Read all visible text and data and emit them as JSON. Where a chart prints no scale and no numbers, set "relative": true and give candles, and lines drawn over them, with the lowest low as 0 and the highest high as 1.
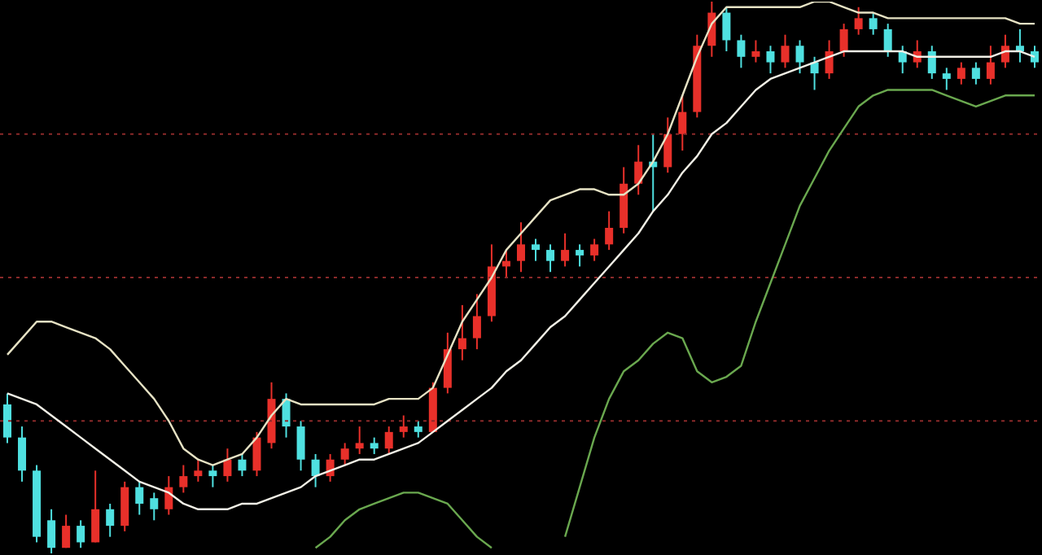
{
  "chart_data": {
    "type": "candlestick",
    "relative": true,
    "tick_labels": false,
    "categories": [
      null,
      null,
      null,
      null,
      null,
      null,
      null,
      null,
      null,
      null,
      null,
      null,
      null,
      null,
      null,
      null,
      null,
      null,
      null,
      null,
      null,
      null,
      null,
      null,
      null,
      null,
      null,
      null,
      null,
      null,
      null,
      null,
      null,
      null,
      null,
      null,
      null,
      null,
      null,
      null,
      null,
      null,
      null,
      null,
      null,
      null,
      null,
      null,
      null,
      null,
      null,
      null,
      null,
      null,
      null,
      null,
      null,
      null,
      null,
      null,
      null,
      null,
      null,
      null,
      null,
      null,
      null,
      null,
      null,
      null,
      null
    ],
    "ohlc": [
      [
        0.27,
        0.29,
        0.2,
        0.21
      ],
      [
        0.21,
        0.23,
        0.13,
        0.15
      ],
      [
        0.15,
        0.16,
        0.02,
        0.03
      ],
      [
        0.06,
        0.08,
        0,
        0.01
      ],
      [
        0.01,
        0.07,
        0.01,
        0.05
      ],
      [
        0.05,
        0.06,
        0.01,
        0.02
      ],
      [
        0.02,
        0.15,
        0.02,
        0.08
      ],
      [
        0.08,
        0.09,
        0.03,
        0.05
      ],
      [
        0.05,
        0.13,
        0.04,
        0.12
      ],
      [
        0.12,
        0.13,
        0.07,
        0.09
      ],
      [
        0.1,
        0.11,
        0.06,
        0.08
      ],
      [
        0.08,
        0.14,
        0.07,
        0.12
      ],
      [
        0.12,
        0.16,
        0.11,
        0.14
      ],
      [
        0.14,
        0.17,
        0.13,
        0.15
      ],
      [
        0.15,
        0.16,
        0.12,
        0.14
      ],
      [
        0.14,
        0.19,
        0.13,
        0.17
      ],
      [
        0.17,
        0.18,
        0.14,
        0.15
      ],
      [
        0.15,
        0.22,
        0.14,
        0.21
      ],
      [
        0.2,
        0.31,
        0.19,
        0.28
      ],
      [
        0.28,
        0.29,
        0.21,
        0.23
      ],
      [
        0.23,
        0.24,
        0.15,
        0.17
      ],
      [
        0.17,
        0.18,
        0.12,
        0.14
      ],
      [
        0.14,
        0.18,
        0.13,
        0.17
      ],
      [
        0.17,
        0.2,
        0.16,
        0.19
      ],
      [
        0.19,
        0.23,
        0.18,
        0.2
      ],
      [
        0.2,
        0.21,
        0.18,
        0.19
      ],
      [
        0.19,
        0.23,
        0.18,
        0.22
      ],
      [
        0.22,
        0.25,
        0.21,
        0.23
      ],
      [
        0.23,
        0.24,
        0.21,
        0.22
      ],
      [
        0.22,
        0.31,
        0.22,
        0.3
      ],
      [
        0.3,
        0.4,
        0.29,
        0.37
      ],
      [
        0.37,
        0.45,
        0.35,
        0.39
      ],
      [
        0.39,
        0.47,
        0.37,
        0.43
      ],
      [
        0.43,
        0.56,
        0.42,
        0.52
      ],
      [
        0.52,
        0.55,
        0.5,
        0.53
      ],
      [
        0.53,
        0.6,
        0.51,
        0.56
      ],
      [
        0.56,
        0.57,
        0.53,
        0.55
      ],
      [
        0.55,
        0.56,
        0.51,
        0.53
      ],
      [
        0.53,
        0.58,
        0.52,
        0.55
      ],
      [
        0.55,
        0.56,
        0.52,
        0.54
      ],
      [
        0.54,
        0.57,
        0.53,
        0.56
      ],
      [
        0.56,
        0.62,
        0.55,
        0.59
      ],
      [
        0.59,
        0.7,
        0.58,
        0.67
      ],
      [
        0.67,
        0.74,
        0.65,
        0.71
      ],
      [
        0.71,
        0.76,
        0.62,
        0.7
      ],
      [
        0.7,
        0.79,
        0.69,
        0.76
      ],
      [
        0.76,
        0.83,
        0.73,
        0.8
      ],
      [
        0.8,
        0.94,
        0.79,
        0.92
      ],
      [
        0.92,
        1,
        0.9,
        0.98
      ],
      [
        0.98,
        0.99,
        0.91,
        0.93
      ],
      [
        0.93,
        0.94,
        0.88,
        0.9
      ],
      [
        0.9,
        0.93,
        0.89,
        0.91
      ],
      [
        0.91,
        0.92,
        0.87,
        0.89
      ],
      [
        0.89,
        0.94,
        0.88,
        0.92
      ],
      [
        0.92,
        0.93,
        0.87,
        0.89
      ],
      [
        0.89,
        0.9,
        0.84,
        0.87
      ],
      [
        0.87,
        0.93,
        0.86,
        0.91
      ],
      [
        0.91,
        0.96,
        0.9,
        0.95
      ],
      [
        0.95,
        0.99,
        0.94,
        0.97
      ],
      [
        0.97,
        0.98,
        0.94,
        0.95
      ],
      [
        0.95,
        0.96,
        0.9,
        0.91
      ],
      [
        0.91,
        0.92,
        0.87,
        0.89
      ],
      [
        0.89,
        0.93,
        0.88,
        0.91
      ],
      [
        0.91,
        0.92,
        0.86,
        0.87
      ],
      [
        0.87,
        0.88,
        0.84,
        0.86
      ],
      [
        0.86,
        0.89,
        0.85,
        0.88
      ],
      [
        0.88,
        0.89,
        0.85,
        0.86
      ],
      [
        0.86,
        0.92,
        0.85,
        0.89
      ],
      [
        0.89,
        0.94,
        0.88,
        0.92
      ],
      [
        0.92,
        0.95,
        0.89,
        0.91
      ],
      [
        0.91,
        0.92,
        0.88,
        0.89
      ]
    ],
    "colors": [
      "#4fe0e0",
      "#4fe0e0",
      "#4fe0e0",
      "#4fe0e0",
      "#e8302a",
      "#4fe0e0",
      "#e8302a",
      "#4fe0e0",
      "#e8302a",
      "#4fe0e0",
      "#4fe0e0",
      "#e8302a",
      "#e8302a",
      "#e8302a",
      "#4fe0e0",
      "#e8302a",
      "#4fe0e0",
      "#e8302a",
      "#e8302a",
      "#4fe0e0",
      "#4fe0e0",
      "#4fe0e0",
      "#e8302a",
      "#e8302a",
      "#e8302a",
      "#4fe0e0",
      "#e8302a",
      "#e8302a",
      "#4fe0e0",
      "#e8302a",
      "#e8302a",
      "#e8302a",
      "#e8302a",
      "#e8302a",
      "#e8302a",
      "#e8302a",
      "#4fe0e0",
      "#4fe0e0",
      "#e8302a",
      "#4fe0e0",
      "#e8302a",
      "#e8302a",
      "#e8302a",
      "#e8302a",
      "#4fe0e0",
      "#e8302a",
      "#e8302a",
      "#e8302a",
      "#e8302a",
      "#4fe0e0",
      "#4fe0e0",
      "#e8302a",
      "#4fe0e0",
      "#e8302a",
      "#4fe0e0",
      "#4fe0e0",
      "#e8302a",
      "#e8302a",
      "#e8302a",
      "#4fe0e0",
      "#4fe0e0",
      "#4fe0e0",
      "#e8302a",
      "#4fe0e0",
      "#4fe0e0",
      "#e8302a",
      "#4fe0e0",
      "#e8302a",
      "#e8302a",
      "#4fe0e0",
      "#4fe0e0"
    ],
    "series": [
      {
        "type": "line",
        "color": "#e6e2c4",
        "values": [
          0.36,
          0.39,
          0.42,
          0.42,
          0.41,
          0.4,
          0.39,
          0.37,
          0.34,
          0.31,
          0.28,
          0.24,
          0.19,
          0.17,
          0.16,
          0.17,
          0.18,
          0.21,
          0.25,
          0.28,
          0.27,
          0.27,
          0.27,
          0.27,
          0.27,
          0.27,
          0.28,
          0.28,
          0.28,
          0.3,
          0.36,
          0.42,
          0.46,
          0.5,
          0.55,
          0.58,
          0.61,
          0.64,
          0.65,
          0.66,
          0.66,
          0.65,
          0.65,
          0.67,
          0.71,
          0.76,
          0.83,
          0.9,
          0.96,
          0.99,
          0.99,
          0.99,
          0.99,
          0.99,
          0.99,
          1,
          1,
          0.99,
          0.98,
          0.98,
          0.97,
          0.97,
          0.97,
          0.97,
          0.97,
          0.97,
          0.97,
          0.97,
          0.97,
          0.96,
          0.96
        ]
      },
      {
        "type": "line",
        "color": "#f2f0e6",
        "values": [
          0.29,
          0.28,
          0.27,
          0.25,
          0.23,
          0.21,
          0.19,
          0.17,
          0.15,
          0.13,
          0.12,
          0.11,
          0.09,
          0.08,
          0.08,
          0.08,
          0.09,
          0.09,
          0.1,
          0.11,
          0.12,
          0.14,
          0.15,
          0.16,
          0.17,
          0.17,
          0.18,
          0.19,
          0.2,
          0.22,
          0.24,
          0.26,
          0.28,
          0.3,
          0.33,
          0.35,
          0.38,
          0.41,
          0.43,
          0.46,
          0.49,
          0.52,
          0.55,
          0.58,
          0.62,
          0.65,
          0.69,
          0.72,
          0.76,
          0.78,
          0.81,
          0.84,
          0.86,
          0.87,
          0.88,
          0.89,
          0.9,
          0.91,
          0.91,
          0.91,
          0.91,
          0.91,
          0.9,
          0.9,
          0.9,
          0.9,
          0.9,
          0.9,
          0.91,
          0.91,
          0.9
        ]
      },
      {
        "type": "line",
        "color": "#6aa84f",
        "values": [
          null,
          null,
          null,
          null,
          null,
          null,
          null,
          null,
          null,
          null,
          null,
          null,
          null,
          null,
          null,
          null,
          null,
          null,
          null,
          null,
          null,
          0.01,
          0.03,
          0.06,
          0.08,
          0.09,
          0.1,
          0.11,
          0.11,
          0.1,
          0.09,
          0.06,
          0.03,
          0.01,
          null,
          null,
          null,
          null,
          0.03,
          0.12,
          0.21,
          0.28,
          0.33,
          0.35,
          0.38,
          0.4,
          0.39,
          0.33,
          0.31,
          0.32,
          0.34,
          0.42,
          0.49,
          0.56,
          0.63,
          0.68,
          0.73,
          0.77,
          0.81,
          0.83,
          0.84,
          0.84,
          0.84,
          0.84,
          0.83,
          0.82,
          0.81,
          0.82,
          0.83,
          0.83,
          0.83
        ]
      }
    ],
    "ref_lines": [
      {
        "axis": "y",
        "value": 0.76,
        "color": "#8b2a2a",
        "line_style": "dotted"
      },
      {
        "axis": "y",
        "value": 0.5,
        "color": "#8b2a2a",
        "line_style": "dotted"
      },
      {
        "axis": "y",
        "value": 0.24,
        "color": "#8b2a2a",
        "line_style": "dotted"
      }
    ]
  }
}
